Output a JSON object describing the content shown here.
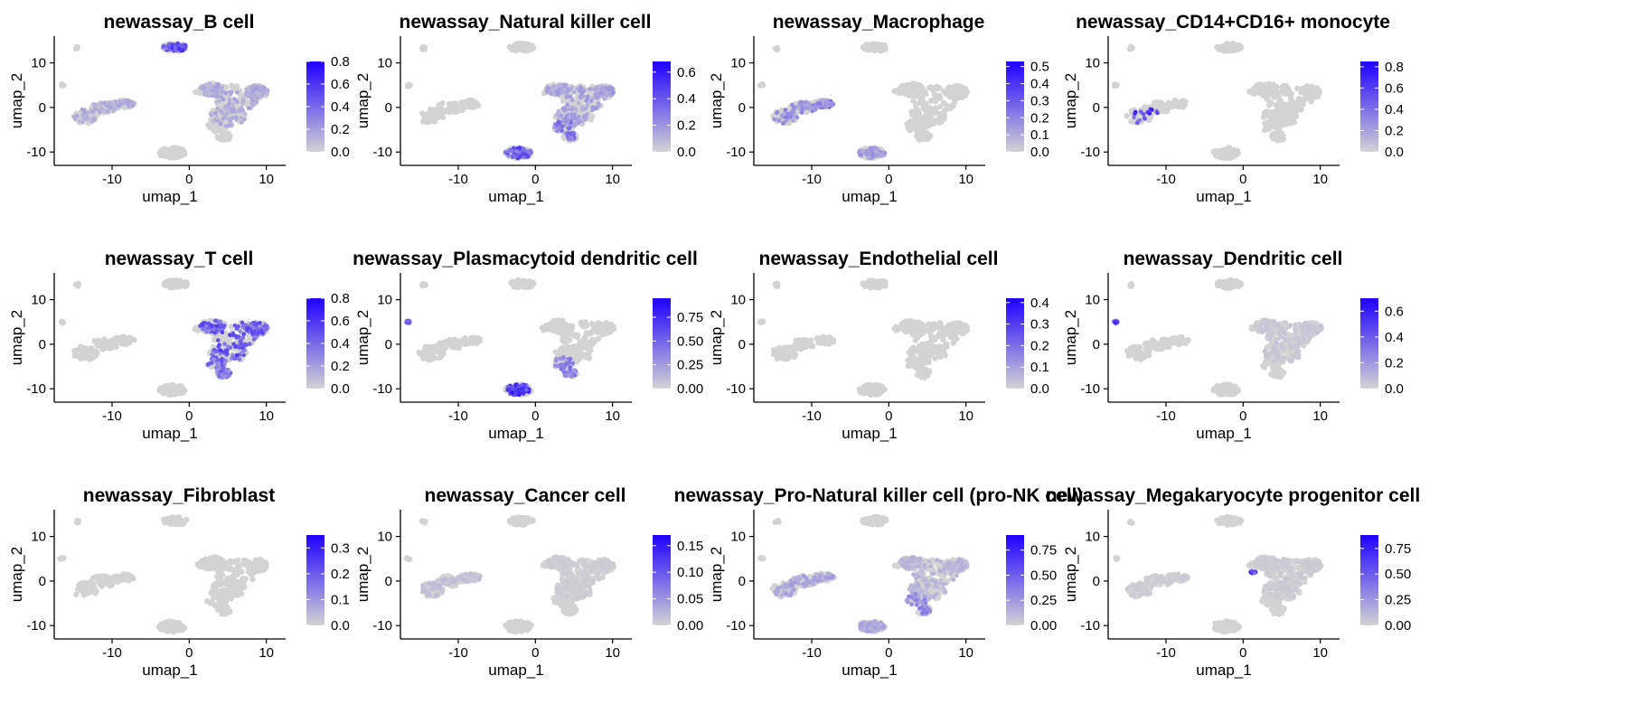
{
  "chart_data": [
    {
      "type": "scatter",
      "title": "newassay_B cell",
      "xlabel": "umap_1",
      "ylabel": "umap_2",
      "xticks": [
        -10,
        0,
        10
      ],
      "yticks": [
        -10,
        0,
        10
      ],
      "color_scale": {
        "low": "#d3d3d3",
        "high": "#1f00ff",
        "ticks": [
          "0.0",
          "0.2",
          "0.4",
          "0.6",
          "0.8"
        ],
        "max": 0.8
      },
      "hotspots": [
        {
          "cluster": "bcell",
          "intensity": 0.8
        },
        {
          "cluster": "tcell",
          "intensity": 0.25
        },
        {
          "cluster": "mono",
          "intensity": 0.25
        }
      ]
    },
    {
      "type": "scatter",
      "title": "newassay_Natural killer cell",
      "xlabel": "umap_1",
      "ylabel": "umap_2",
      "xticks": [
        -10,
        0,
        10
      ],
      "yticks": [
        -10,
        0,
        10
      ],
      "color_scale": {
        "low": "#d3d3d3",
        "high": "#1f00ff",
        "ticks": [
          "0.0",
          "0.2",
          "0.4",
          "0.6"
        ],
        "max": 0.68
      },
      "hotspots": [
        {
          "cluster": "nk",
          "intensity": 0.8
        },
        {
          "cluster": "tcell",
          "intensity": 0.3
        },
        {
          "cluster": "tlower",
          "intensity": 0.55
        }
      ]
    },
    {
      "type": "scatter",
      "title": "newassay_Macrophage",
      "xlabel": "umap_1",
      "ylabel": "umap_2",
      "xticks": [
        -10,
        0,
        10
      ],
      "yticks": [
        -10,
        0,
        10
      ],
      "color_scale": {
        "low": "#d3d3d3",
        "high": "#1f00ff",
        "ticks": [
          "0.0",
          "0.1",
          "0.2",
          "0.3",
          "0.4",
          "0.5"
        ],
        "max": 0.53
      },
      "hotspots": [
        {
          "cluster": "monoRight",
          "intensity": 0.85
        },
        {
          "cluster": "mono",
          "intensity": 0.4
        },
        {
          "cluster": "nk",
          "intensity": 0.35
        }
      ]
    },
    {
      "type": "scatter",
      "title": "newassay_CD14+CD16+ monocyte",
      "xlabel": "umap_1",
      "ylabel": "umap_2",
      "xticks": [
        -10,
        0,
        10
      ],
      "yticks": [
        -10,
        0,
        10
      ],
      "color_scale": {
        "low": "#d3d3d3",
        "high": "#1f00ff",
        "ticks": [
          "0.0",
          "0.2",
          "0.4",
          "0.6",
          "0.8"
        ],
        "max": 0.85
      },
      "hotspots": [
        {
          "cluster": "monoLeft",
          "intensity": 0.9
        }
      ]
    },
    {
      "type": "scatter",
      "title": "newassay_T cell",
      "xlabel": "umap_1",
      "ylabel": "umap_2",
      "xticks": [
        -10,
        0,
        10
      ],
      "yticks": [
        -10,
        0,
        10
      ],
      "color_scale": {
        "low": "#d3d3d3",
        "high": "#1f00ff",
        "ticks": [
          "0.0",
          "0.2",
          "0.4",
          "0.6",
          "0.8"
        ],
        "max": 0.8
      },
      "hotspots": [
        {
          "cluster": "tcell",
          "intensity": 0.75
        },
        {
          "cluster": "tlower",
          "intensity": 0.6
        }
      ]
    },
    {
      "type": "scatter",
      "title": "newassay_Plasmacytoid dendritic cell",
      "xlabel": "umap_1",
      "ylabel": "umap_2",
      "xticks": [
        -10,
        0,
        10
      ],
      "yticks": [
        -10,
        0,
        10
      ],
      "color_scale": {
        "low": "#d3d3d3",
        "high": "#1f00ff",
        "ticks": [
          "0.00",
          "0.25",
          "0.50",
          "0.75"
        ],
        "max": 0.95
      },
      "hotspots": [
        {
          "cluster": "nk",
          "intensity": 0.95
        },
        {
          "cluster": "outlier",
          "intensity": 0.9
        },
        {
          "cluster": "tlower",
          "intensity": 0.5
        }
      ]
    },
    {
      "type": "scatter",
      "title": "newassay_Endothelial cell",
      "xlabel": "umap_1",
      "ylabel": "umap_2",
      "xticks": [
        -10,
        0,
        10
      ],
      "yticks": [
        -10,
        0,
        10
      ],
      "color_scale": {
        "low": "#d3d3d3",
        "high": "#1f00ff",
        "ticks": [
          "0.0",
          "0.1",
          "0.2",
          "0.3",
          "0.4"
        ],
        "max": 0.42
      },
      "hotspots": []
    },
    {
      "type": "scatter",
      "title": "newassay_Dendritic cell",
      "xlabel": "umap_1",
      "ylabel": "umap_2",
      "xticks": [
        -10,
        0,
        10
      ],
      "yticks": [
        -10,
        0,
        10
      ],
      "color_scale": {
        "low": "#d3d3d3",
        "high": "#1f00ff",
        "ticks": [
          "0.0",
          "0.2",
          "0.4",
          "0.6"
        ],
        "max": 0.7
      },
      "hotspots": [
        {
          "cluster": "outlier",
          "intensity": 0.9
        },
        {
          "cluster": "tcell",
          "intensity": 0.08
        }
      ]
    },
    {
      "type": "scatter",
      "title": "newassay_Fibroblast",
      "xlabel": "umap_1",
      "ylabel": "umap_2",
      "xticks": [
        -10,
        0,
        10
      ],
      "yticks": [
        -10,
        0,
        10
      ],
      "color_scale": {
        "low": "#d3d3d3",
        "high": "#1f00ff",
        "ticks": [
          "0.0",
          "0.1",
          "0.2",
          "0.3"
        ],
        "max": 0.35
      },
      "hotspots": []
    },
    {
      "type": "scatter",
      "title": "newassay_Cancer cell",
      "xlabel": "umap_1",
      "ylabel": "umap_2",
      "xticks": [
        -10,
        0,
        10
      ],
      "yticks": [
        -10,
        0,
        10
      ],
      "color_scale": {
        "low": "#d3d3d3",
        "high": "#1f00ff",
        "ticks": [
          "0.00",
          "0.05",
          "0.10",
          "0.15"
        ],
        "max": 0.17
      },
      "hotspots": [
        {
          "cluster": "mono",
          "intensity": 0.12
        },
        {
          "cluster": "tcell",
          "intensity": 0.05
        }
      ]
    },
    {
      "type": "scatter",
      "title": "newassay_Pro-Natural killer cell (pro-NK cell)",
      "xlabel": "umap_1",
      "ylabel": "umap_2",
      "xticks": [
        -10,
        0,
        10
      ],
      "yticks": [
        -10,
        0,
        10
      ],
      "color_scale": {
        "low": "#d3d3d3",
        "high": "#1f00ff",
        "ticks": [
          "0.00",
          "0.25",
          "0.50",
          "0.75"
        ],
        "max": 0.9
      },
      "hotspots": [
        {
          "cluster": "mono",
          "intensity": 0.3
        },
        {
          "cluster": "nk",
          "intensity": 0.3
        },
        {
          "cluster": "tcell",
          "intensity": 0.18
        },
        {
          "cluster": "tlower",
          "intensity": 0.45
        }
      ]
    },
    {
      "type": "scatter",
      "title": "newassay_Megakaryocyte progenitor cell",
      "xlabel": "umap_1",
      "ylabel": "umap_2",
      "xticks": [
        -10,
        0,
        10
      ],
      "yticks": [
        -10,
        0,
        10
      ],
      "color_scale": {
        "low": "#d3d3d3",
        "high": "#1f00ff",
        "ticks": [
          "0.00",
          "0.25",
          "0.50",
          "0.75"
        ],
        "max": 0.88
      },
      "hotspots": [
        {
          "cluster": "smallMid",
          "intensity": 0.9
        },
        {
          "cluster": "tcell",
          "intensity": 0.06
        },
        {
          "cluster": "mono",
          "intensity": 0.05
        }
      ]
    }
  ]
}
